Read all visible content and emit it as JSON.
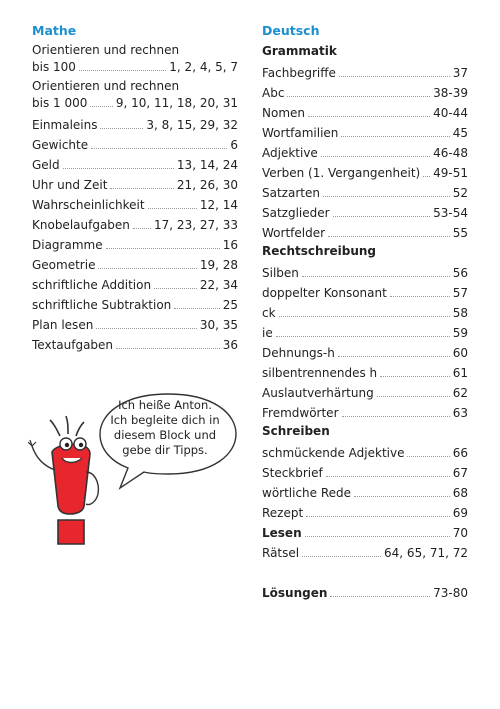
{
  "mathe": {
    "heading": "Mathe",
    "items": [
      {
        "label1": "Orientieren und rechnen",
        "label2": "bis 100",
        "pages": "1, 2, 4, 5, 7"
      },
      {
        "label1": "Orientieren und rechnen",
        "label2": "bis 1 000",
        "pages": "9, 10, 11, 18, 20, 31"
      },
      {
        "label": "Einmaleins",
        "pages": "3, 8, 15, 29, 32"
      },
      {
        "label": "Gewichte",
        "pages": "6"
      },
      {
        "label": "Geld",
        "pages": "13, 14, 24"
      },
      {
        "label": "Uhr und Zeit",
        "pages": "21, 26, 30"
      },
      {
        "label": "Wahrscheinlichkeit",
        "pages": "12, 14"
      },
      {
        "label": "Knobelaufgaben",
        "pages": "17, 23, 27, 33"
      },
      {
        "label": "Diagramme",
        "pages": "16"
      },
      {
        "label": "Geometrie",
        "pages": "19, 28"
      },
      {
        "label": "schriftliche Addition",
        "pages": "22, 34"
      },
      {
        "label": "schriftliche Subtraktion",
        "pages": "25"
      },
      {
        "label": "Plan lesen",
        "pages": "30, 35"
      },
      {
        "label": "Textaufgaben",
        "pages": "36"
      }
    ]
  },
  "deutsch": {
    "heading": "Deutsch",
    "grammatik": {
      "title": "Grammatik",
      "items": [
        {
          "label": "Fachbegriffe",
          "pages": "37"
        },
        {
          "label": "Abc",
          "pages": "38-39"
        },
        {
          "label": "Nomen",
          "pages": "40-44"
        },
        {
          "label": "Wortfamilien",
          "pages": "45"
        },
        {
          "label": "Adjektive",
          "pages": "46-48"
        },
        {
          "label": "Verben (1. Vergangenheit)",
          "pages": "49-51"
        },
        {
          "label": "Satzarten",
          "pages": "52"
        },
        {
          "label": "Satzglieder",
          "pages": "53-54"
        },
        {
          "label": "Wortfelder",
          "pages": "55"
        }
      ]
    },
    "rechtschreibung": {
      "title": "Rechtschreibung",
      "items": [
        {
          "label": "Silben",
          "pages": "56"
        },
        {
          "label": "doppelter Konsonant",
          "pages": "57"
        },
        {
          "label": "ck",
          "pages": "58"
        },
        {
          "label": "ie",
          "pages": "59"
        },
        {
          "label": "Dehnungs-h",
          "pages": "60"
        },
        {
          "label": "silbentrennendes h",
          "pages": "61"
        },
        {
          "label": "Auslautverhärtung",
          "pages": "62"
        },
        {
          "label": "Fremdwörter",
          "pages": "63"
        }
      ]
    },
    "schreiben": {
      "title": "Schreiben",
      "items": [
        {
          "label": "schmückende Adjektive",
          "pages": "66"
        },
        {
          "label": "Steckbrief",
          "pages": "67"
        },
        {
          "label": "wörtliche Rede",
          "pages": "68"
        },
        {
          "label": "Rezept",
          "pages": "69"
        }
      ]
    },
    "lesen": {
      "label": "Lesen",
      "pages": "70"
    },
    "raetsel": {
      "label": "Rätsel",
      "pages": "64, 65, 71, 72"
    },
    "loesungen": {
      "label": "Lösungen",
      "pages": "73-80"
    }
  },
  "speech_bubble": {
    "lines": [
      "Ich heiße Anton.",
      "Ich begleite dich in",
      "diesem Block und",
      "gebe dir Tipps."
    ]
  },
  "colors": {
    "heading": "#1b8fcf",
    "mascot": "#e8262d"
  }
}
